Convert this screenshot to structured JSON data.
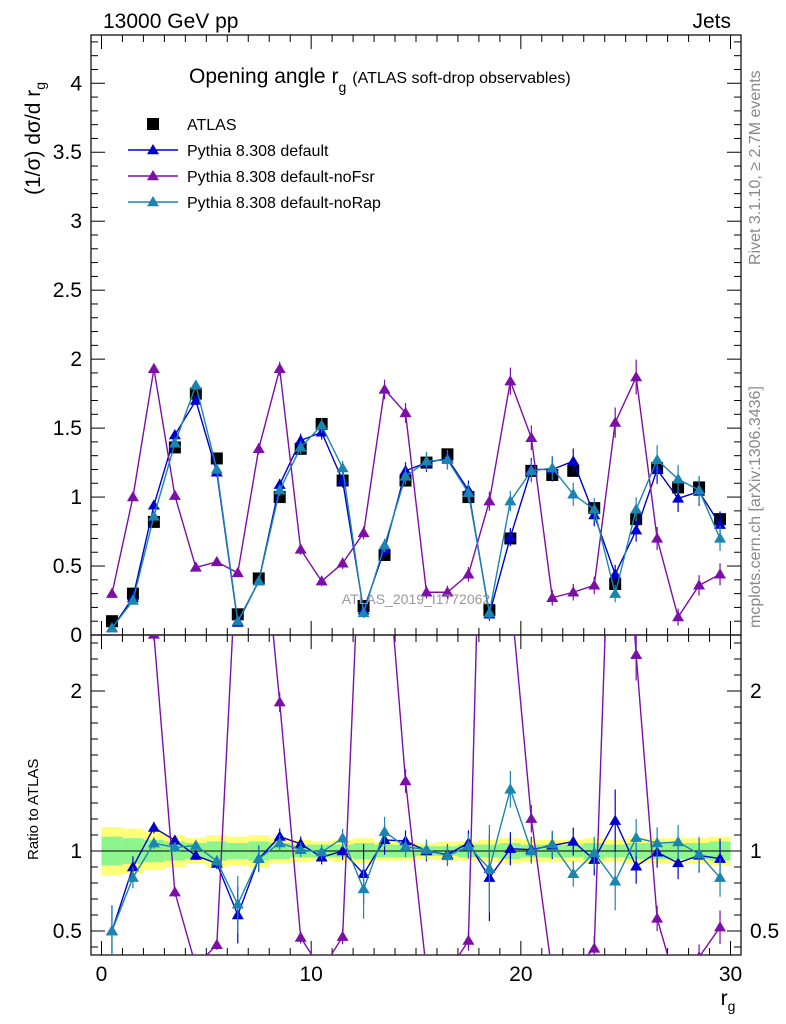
{
  "header": {
    "left": "13000 GeV pp",
    "right": "Jets"
  },
  "side_labels": {
    "top": "Rivet 3.1.10, ≥ 2.7M events",
    "bottom": "mcplots.cern.ch [arXiv:1306.3436]"
  },
  "chart_data": {
    "type": "line",
    "title": "Opening angle r",
    "title_sub": "g",
    "title_note": "(ATLAS soft-drop observables)",
    "watermark": "ATLAS_2019_I1772062",
    "xlabel": "r",
    "xlabel_sub": "g",
    "ylabel": "(1/σ) dσ/d r",
    "ylabel_sub": "g",
    "ratio_ylabel": "Ratio to ATLAS",
    "xlim": [
      -0.5,
      30.5
    ],
    "ylim": [
      0,
      4.35
    ],
    "ratio_ylim": [
      0.35,
      2.35
    ],
    "x_ticks": [
      0,
      10,
      20,
      30
    ],
    "y_ticks": [
      0,
      0.5,
      1,
      1.5,
      2,
      2.5,
      3,
      3.5,
      4
    ],
    "ratio_ticks": [
      0.5,
      1,
      2
    ],
    "bins": [
      0.5,
      1.5,
      2.5,
      3.5,
      4.5,
      5.5,
      6.5,
      7.5,
      8.5,
      9.5,
      10.5,
      11.5,
      12.5,
      13.5,
      14.5,
      15.5,
      16.5,
      17.5,
      18.5,
      19.5,
      20.5,
      21.5,
      22.5,
      23.5,
      24.5,
      25.5,
      26.5,
      27.5,
      28.5,
      29.5
    ],
    "band_inner": [
      0.09,
      0.08,
      0.07,
      0.06,
      0.05,
      0.06,
      0.05,
      0.06,
      0.05,
      0.04,
      0.04,
      0.04,
      0.05,
      0.04,
      0.04,
      0.03,
      0.03,
      0.04,
      0.04,
      0.05,
      0.04,
      0.04,
      0.04,
      0.05,
      0.04,
      0.05,
      0.05,
      0.05,
      0.05,
      0.06
    ],
    "band_outer": [
      0.15,
      0.14,
      0.12,
      0.1,
      0.08,
      0.1,
      0.09,
      0.1,
      0.08,
      0.07,
      0.06,
      0.07,
      0.08,
      0.06,
      0.06,
      0.05,
      0.06,
      0.06,
      0.07,
      0.08,
      0.07,
      0.07,
      0.07,
      0.08,
      0.07,
      0.08,
      0.08,
      0.08,
      0.08,
      0.09
    ],
    "series": [
      {
        "name": "ATLAS",
        "color": "#000000",
        "marker": "square",
        "values": [
          0.1,
          0.3,
          0.82,
          1.36,
          1.75,
          1.28,
          0.15,
          0.41,
          1.0,
          1.35,
          1.53,
          1.12,
          0.21,
          0.58,
          1.12,
          1.25,
          1.31,
          1.0,
          0.18,
          0.7,
          1.19,
          1.16,
          1.19,
          0.92,
          0.37,
          0.84,
          1.21,
          1.07,
          1.07,
          0.84
        ]
      },
      {
        "name": "Pythia 8.308 default",
        "color": "#0000cc",
        "marker": "triangle",
        "values": [
          0.05,
          0.27,
          0.94,
          1.45,
          1.7,
          1.18,
          0.09,
          0.39,
          1.09,
          1.41,
          1.47,
          1.12,
          0.18,
          0.62,
          1.19,
          1.25,
          1.28,
          1.05,
          0.15,
          0.71,
          1.2,
          1.2,
          1.26,
          0.87,
          0.44,
          0.76,
          1.2,
          0.99,
          1.04,
          0.8
        ]
      },
      {
        "name": "Pythia 8.308 default-noFsr",
        "color": "#7b0fa8",
        "marker": "triangle",
        "values": [
          0.3,
          1.0,
          1.93,
          1.01,
          0.49,
          0.53,
          0.45,
          1.35,
          1.93,
          0.62,
          0.39,
          0.52,
          0.74,
          1.78,
          1.61,
          0.31,
          0.31,
          0.44,
          0.97,
          1.84,
          1.43,
          0.27,
          0.31,
          0.36,
          1.54,
          1.87,
          0.7,
          0.13,
          0.36,
          0.44
        ]
      },
      {
        "name": "Pythia 8.308 default-noRap",
        "color": "#1a85b0",
        "marker": "triangle",
        "values": [
          0.05,
          0.25,
          0.86,
          1.39,
          1.81,
          1.2,
          0.1,
          0.39,
          1.05,
          1.36,
          1.52,
          1.21,
          0.16,
          0.65,
          1.15,
          1.26,
          1.27,
          1.03,
          0.16,
          0.97,
          1.19,
          1.21,
          1.02,
          0.91,
          0.3,
          0.91,
          1.27,
          1.13,
          1.05,
          0.7
        ]
      }
    ]
  }
}
